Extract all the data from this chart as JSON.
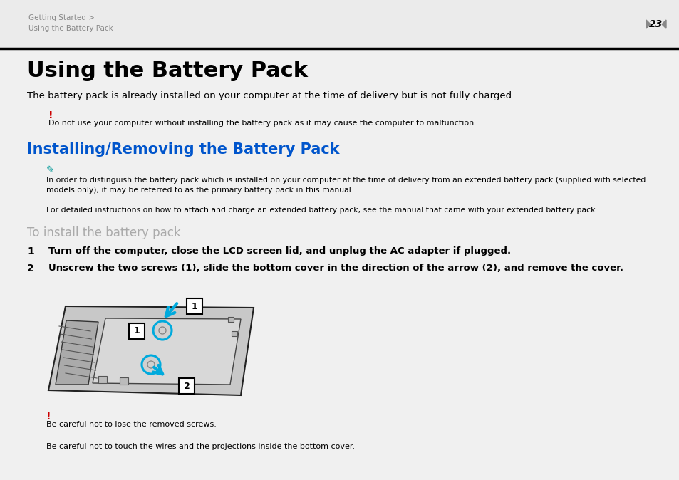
{
  "bg_color": "#f0f0f0",
  "page_bg": "#ffffff",
  "header_text1": "Getting Started >",
  "header_text2": "Using the Battery Pack",
  "header_color": "#888888",
  "page_num": "23",
  "title": "Using the Battery Pack",
  "subtitle": "The battery pack is already installed on your computer at the time of delivery but is not fully charged.",
  "warning_mark": "!",
  "warning_color": "#cc0000",
  "warning_text": "Do not use your computer without installing the battery pack as it may cause the computer to malfunction.",
  "section_title": "Installing/Removing the Battery Pack",
  "section_color": "#0055cc",
  "note_text1": "In order to distinguish the battery pack which is installed on your computer at the time of delivery from an extended battery pack (supplied with selected\nmodels only), it may be referred to as the primary battery pack in this manual.",
  "note_text2": "For detailed instructions on how to attach and charge an extended battery pack, see the manual that came with your extended battery pack.",
  "subsection": "To install the battery pack",
  "subsection_color": "#aaaaaa",
  "step1_num": "1",
  "step1_text": "Turn off the computer, close the LCD screen lid, and unplug the AC adapter if plugged.",
  "step2_num": "2",
  "step2_text": "Unscrew the two screws (1), slide the bottom cover in the direction of the arrow (2), and remove the cover.",
  "warning2_text": "Be careful not to lose the removed screws.",
  "warning3_text": "Be careful not to touch the wires and the projections inside the bottom cover.",
  "arrow_color": "#00aadd",
  "text_color": "#000000"
}
